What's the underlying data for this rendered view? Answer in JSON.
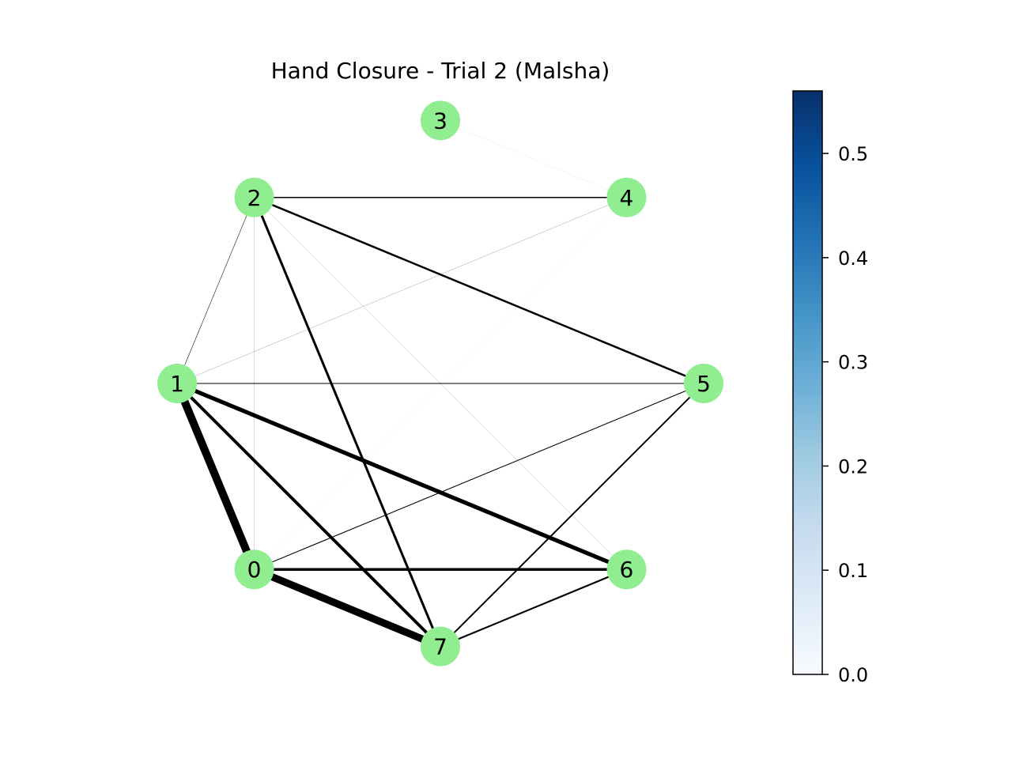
{
  "title": "Hand Closure - Trial 2 (Malsha)",
  "node_color": "#90ee90",
  "edge_color": "#000000",
  "graph": {
    "nodes": [
      {
        "id": "0",
        "label": "0"
      },
      {
        "id": "1",
        "label": "1"
      },
      {
        "id": "2",
        "label": "2"
      },
      {
        "id": "3",
        "label": "3"
      },
      {
        "id": "4",
        "label": "4"
      },
      {
        "id": "5",
        "label": "5"
      },
      {
        "id": "6",
        "label": "6"
      },
      {
        "id": "7",
        "label": "7"
      }
    ],
    "edges": [
      {
        "source": "0",
        "target": "1",
        "weight": 0.56
      },
      {
        "source": "0",
        "target": "7",
        "weight": 0.52
      },
      {
        "source": "1",
        "target": "6",
        "weight": 0.29
      },
      {
        "source": "1",
        "target": "7",
        "weight": 0.22
      },
      {
        "source": "0",
        "target": "6",
        "weight": 0.2
      },
      {
        "source": "2",
        "target": "7",
        "weight": 0.17
      },
      {
        "source": "2",
        "target": "5",
        "weight": 0.14
      },
      {
        "source": "5",
        "target": "7",
        "weight": 0.11
      },
      {
        "source": "6",
        "target": "7",
        "weight": 0.12
      },
      {
        "source": "2",
        "target": "4",
        "weight": 0.08
      },
      {
        "source": "0",
        "target": "5",
        "weight": 0.06
      },
      {
        "source": "1",
        "target": "5",
        "weight": 0.05
      },
      {
        "source": "1",
        "target": "2",
        "weight": 0.03
      },
      {
        "source": "1",
        "target": "4",
        "weight": 0.02
      },
      {
        "source": "2",
        "target": "6",
        "weight": 0.015
      },
      {
        "source": "0",
        "target": "2",
        "weight": 0.01
      },
      {
        "source": "0",
        "target": "4",
        "weight": 0.005
      },
      {
        "source": "3",
        "target": "4",
        "weight": 0.003
      }
    ]
  },
  "colorbar": {
    "colormap": "Blues",
    "min": 0.0,
    "max": 0.56,
    "ticks": [
      "0.0",
      "0.1",
      "0.2",
      "0.3",
      "0.4",
      "0.5"
    ],
    "tick_values": [
      0.0,
      0.1,
      0.2,
      0.3,
      0.4,
      0.5
    ],
    "gradient_colors": [
      "#f7fbff",
      "#deebf7",
      "#c6dbef",
      "#9ecae1",
      "#6baed6",
      "#4292c6",
      "#2171b5",
      "#08519c",
      "#08306b"
    ]
  }
}
